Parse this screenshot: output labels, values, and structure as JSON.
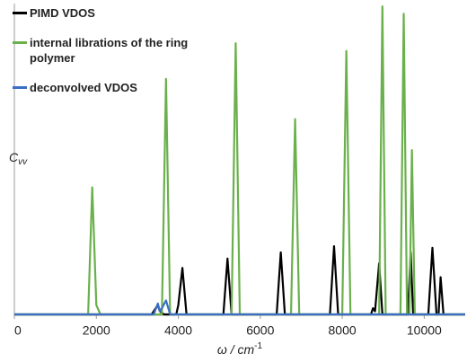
{
  "chart_data": {
    "type": "line",
    "x_label": "ω / cm",
    "x_label_sup": "-1",
    "y_label": "C",
    "y_label_sub": "vv",
    "xlim": [
      0,
      11000
    ],
    "xticks": [
      0,
      2000,
      4000,
      6000,
      8000,
      10000
    ],
    "ylim": [
      0,
      100
    ],
    "legend": "top-left",
    "series": [
      {
        "name": "PIMD VDOS",
        "color": "#000000",
        "x": [
          0,
          3350,
          3450,
          3500,
          3550,
          3650,
          3950,
          4000,
          4100,
          4200,
          5100,
          5200,
          5300,
          6400,
          6500,
          6600,
          7700,
          7800,
          7900,
          8700,
          8750,
          8800,
          8900,
          8980,
          9600,
          9670,
          9730,
          10100,
          10200,
          10300,
          10350,
          10400,
          10470,
          11000
        ],
        "values": [
          0,
          0,
          2,
          3,
          1,
          0,
          0,
          3,
          15,
          0,
          0,
          18,
          0,
          0,
          20,
          0,
          0,
          22,
          0,
          0,
          2,
          1,
          16.5,
          0,
          0,
          20,
          0,
          0,
          21.5,
          0,
          0,
          12,
          0,
          0
        ]
      },
      {
        "name": "internal librations of the ring polymer",
        "color": "#6ab04c",
        "x": [
          0,
          1600,
          1800,
          1900,
          2000,
          2100,
          3600,
          3700,
          3800,
          5300,
          5400,
          5500,
          6750,
          6850,
          6950,
          8000,
          8100,
          8200,
          8900,
          8980,
          9060,
          9420,
          9500,
          9580,
          9640,
          9700,
          9770,
          11000
        ],
        "values": [
          0,
          0,
          0,
          41,
          3,
          0,
          0,
          76,
          0,
          0,
          87.5,
          0,
          0,
          63,
          0,
          0,
          85,
          0,
          0,
          99.4,
          0,
          0,
          97,
          0,
          0,
          53,
          0,
          0
        ]
      },
      {
        "name": "deconvolved VDOS",
        "color": "#3a6fc4",
        "x": [
          0,
          3400,
          3500,
          3550,
          3600,
          3700,
          3800,
          11000
        ],
        "values": [
          0,
          0,
          3.5,
          1,
          2,
          4.5,
          0,
          0
        ]
      }
    ]
  }
}
